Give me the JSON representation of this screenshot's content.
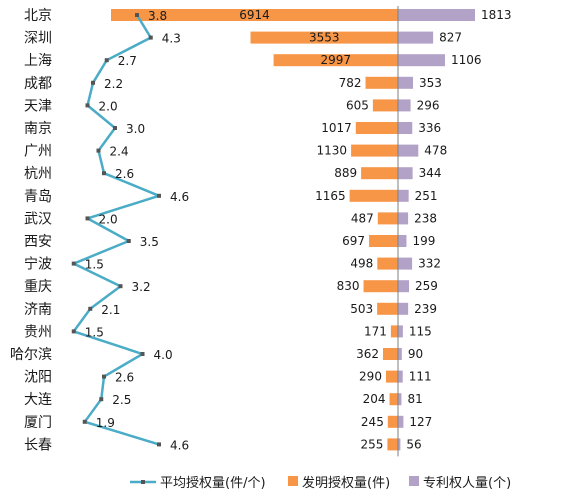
{
  "chart_data": {
    "type": "bar",
    "categories": [
      "北京",
      "深圳",
      "上海",
      "成都",
      "天津",
      "南京",
      "广州",
      "杭州",
      "青岛",
      "武汉",
      "西安",
      "宁波",
      "重庆",
      "济南",
      "贵州",
      "哈尔滨",
      "沈阳",
      "大连",
      "厦门",
      "长春"
    ],
    "series": [
      {
        "name": "平均授权量(件/个)",
        "type": "line",
        "color": "#4aacc6",
        "values": [
          3.8,
          4.3,
          2.7,
          2.2,
          2.0,
          3.0,
          2.4,
          2.6,
          4.6,
          2.0,
          3.5,
          1.5,
          3.2,
          2.1,
          1.5,
          4.0,
          2.6,
          2.5,
          1.9,
          4.6
        ],
        "labels": [
          "3.8",
          "4.3",
          "2.7",
          "2.2",
          "2.0",
          "3.0",
          "2.4",
          "2.6",
          "4.6",
          "2.0",
          "3.5",
          "1.5",
          "3.2",
          "2.1",
          "1.5",
          "4.0",
          "2.6",
          "2.5",
          "1.9",
          "4.6"
        ]
      },
      {
        "name": "发明授权量(件)",
        "type": "bar",
        "color": "#f79646",
        "values": [
          6914,
          3553,
          2997,
          782,
          605,
          1017,
          1130,
          889,
          1165,
          487,
          697,
          498,
          830,
          503,
          171,
          362,
          290,
          204,
          245,
          255
        ]
      },
      {
        "name": "专利权人量(个)",
        "type": "bar",
        "color": "#b3a2c7",
        "values": [
          1813,
          827,
          1106,
          353,
          296,
          336,
          478,
          344,
          251,
          238,
          199,
          332,
          259,
          239,
          115,
          90,
          111,
          81,
          127,
          56
        ]
      }
    ],
    "legend_position": "bottom",
    "grid": false
  }
}
